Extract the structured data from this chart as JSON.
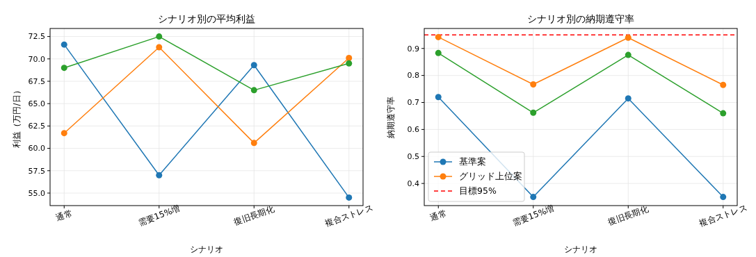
{
  "chart_data": [
    {
      "type": "line",
      "title": "シナリオ別の平均利益",
      "xlabel": "シナリオ",
      "ylabel": "利益（万円/日）",
      "categories": [
        "通常",
        "需要15%増",
        "復旧長期化",
        "複合ストレス"
      ],
      "series": [
        {
          "color": "#1f77b4",
          "values": [
            71.6,
            57.0,
            69.3,
            54.5
          ]
        },
        {
          "color": "#ff7f0e",
          "values": [
            61.7,
            71.3,
            60.6,
            70.1
          ]
        },
        {
          "color": "#2ca02c",
          "values": [
            69.0,
            72.5,
            66.5,
            69.5
          ]
        }
      ],
      "ylim": [
        53.6,
        73.4
      ],
      "yticks": [
        {
          "value": 55,
          "label": "55.0"
        },
        {
          "value": 57.5,
          "label": "57.5"
        },
        {
          "value": 60,
          "label": "60.0"
        },
        {
          "value": 62.5,
          "label": "62.5"
        },
        {
          "value": 65,
          "label": "65.0"
        },
        {
          "value": 67.5,
          "label": "67.5"
        },
        {
          "value": 70,
          "label": "70.0"
        },
        {
          "value": 72.5,
          "label": "72.5"
        }
      ],
      "grid": true,
      "marker": "circle",
      "legend": false
    },
    {
      "type": "line",
      "title": "シナリオ別の納期遵守率",
      "xlabel": "シナリオ",
      "ylabel": "納期遵守率",
      "categories": [
        "通常",
        "需要15%増",
        "復旧長期化",
        "複合ストレス"
      ],
      "series": [
        {
          "name": "基準案",
          "color": "#1f77b4",
          "values": [
            0.72,
            0.35,
            0.715,
            0.35
          ]
        },
        {
          "name": "グリッド上位案",
          "color": "#ff7f0e",
          "values": [
            0.942,
            0.767,
            0.94,
            0.765
          ]
        },
        {
          "color": "#2ca02c",
          "values": [
            0.883,
            0.662,
            0.876,
            0.66
          ]
        }
      ],
      "ylim": [
        0.318,
        0.974
      ],
      "yticks": [
        0.4,
        0.5,
        0.6,
        0.7,
        0.8,
        0.9
      ],
      "grid": true,
      "marker": "circle",
      "legend": "bottom left",
      "ref_lines": [
        {
          "axis": "y",
          "value": 0.95,
          "label": "目標95%",
          "color": "#ff0000",
          "line_style": "dashed"
        }
      ]
    }
  ]
}
